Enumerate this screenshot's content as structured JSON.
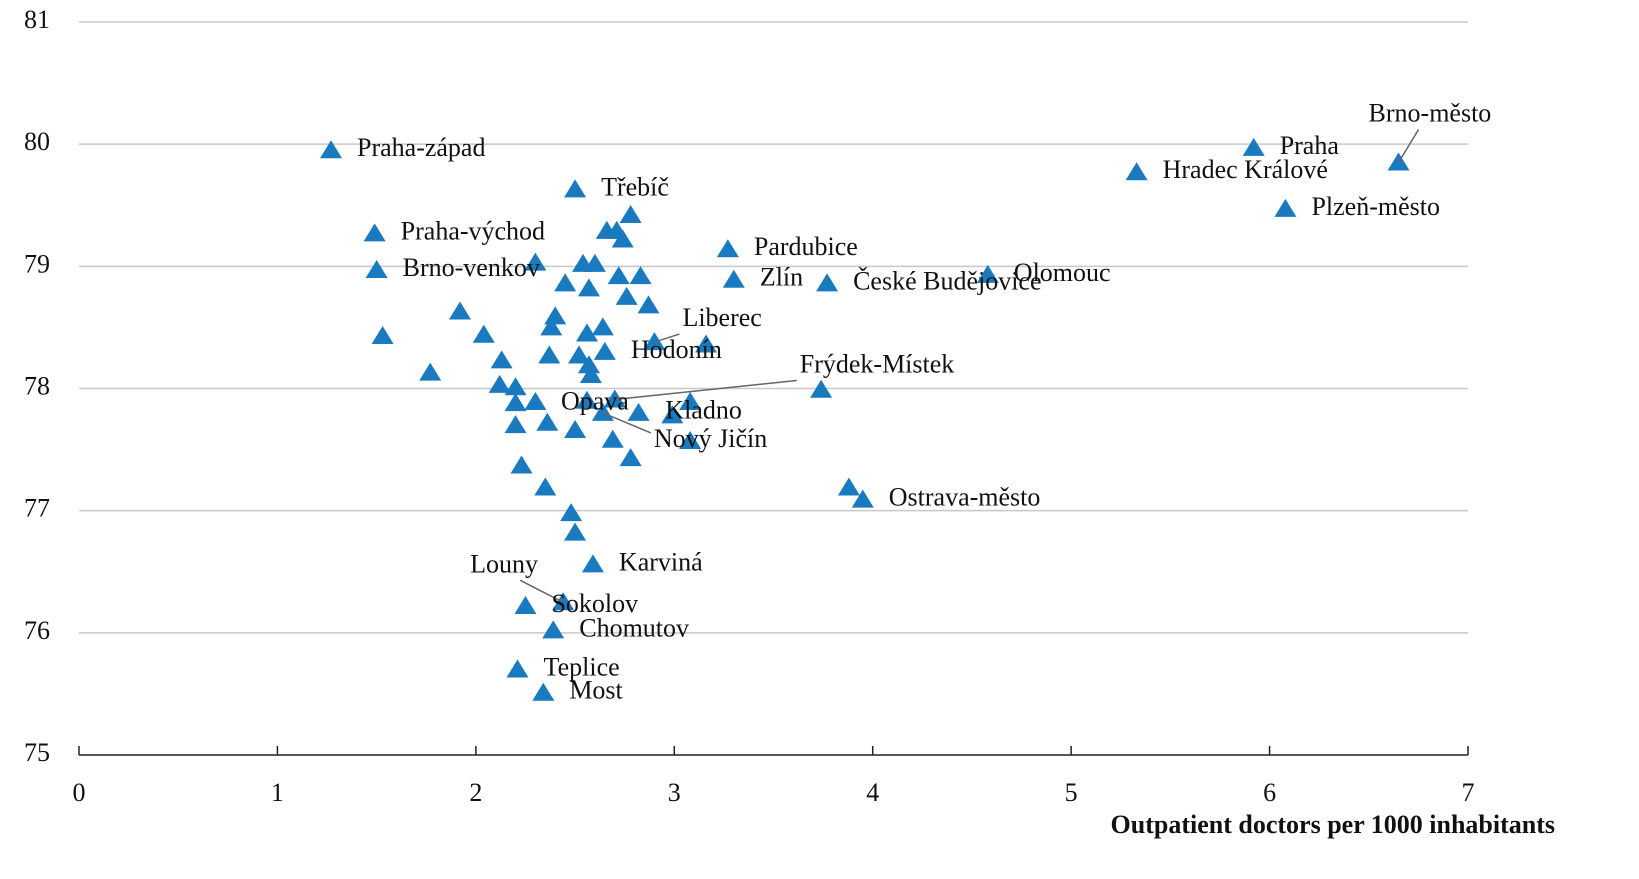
{
  "chart_data": {
    "type": "scatter",
    "x_label": "Outpatient doctors per 1000 inhabitants",
    "color": "#1a7abf",
    "xlim": [
      0,
      7
    ],
    "ylim": [
      75,
      81
    ],
    "xticks": [
      0,
      1,
      2,
      3,
      4,
      5,
      6,
      7
    ],
    "yticks": [
      75,
      76,
      77,
      78,
      79,
      80,
      81
    ],
    "grid": true,
    "labels": [
      "Praha-západ",
      "Třebíč",
      "Praha-východ",
      "Brno-venkov",
      "Pardubice",
      "Zlín",
      "České Budějovice",
      "Olomouc",
      "Liberec",
      "Hodonín",
      "Frýdek-Místek",
      "Opava",
      "Kladno",
      "Nový Jičín",
      "Ostrava-město",
      "Karviná",
      "Louny",
      "Sokolov",
      "Chomutov",
      "Teplice",
      "Most",
      "Praha",
      "Hradec Králové",
      "Brno-město",
      "Plzeň-město",
      null,
      null,
      null,
      null,
      null,
      null,
      null,
      null,
      null,
      null,
      null,
      null,
      null,
      null,
      null,
      null,
      null,
      null,
      null,
      null,
      null,
      null,
      null,
      null,
      null,
      null,
      null,
      null,
      null,
      null,
      null,
      null,
      null,
      null,
      null,
      null,
      null,
      null,
      null,
      null,
      null,
      null,
      null,
      null,
      null
    ],
    "x": [
      1.27,
      2.5,
      1.49,
      1.5,
      3.27,
      3.3,
      3.77,
      4.58,
      2.9,
      2.65,
      2.7,
      2.56,
      2.99,
      2.64,
      3.95,
      2.59,
      2.44,
      2.25,
      2.39,
      2.21,
      2.34,
      5.92,
      5.33,
      6.65,
      6.08,
      2.78,
      2.66,
      2.71,
      2.74,
      2.3,
      2.54,
      2.6,
      2.72,
      2.83,
      2.45,
      2.57,
      2.76,
      2.87,
      1.92,
      2.4,
      2.38,
      2.64,
      2.56,
      2.04,
      1.53,
      3.16,
      2.37,
      2.13,
      2.52,
      2.57,
      1.77,
      2.58,
      2.12,
      2.2,
      3.74,
      2.3,
      2.2,
      3.08,
      2.82,
      2.36,
      2.2,
      2.5,
      2.69,
      3.08,
      2.78,
      2.23,
      2.35,
      3.88,
      2.48,
      2.5
    ],
    "y": [
      79.95,
      79.63,
      79.27,
      78.97,
      79.14,
      78.89,
      78.86,
      78.93,
      78.38,
      78.3,
      77.91,
      77.9,
      77.78,
      77.8,
      77.09,
      76.56,
      76.25,
      76.22,
      76.02,
      75.7,
      75.51,
      79.97,
      79.77,
      79.85,
      79.47,
      79.42,
      79.29,
      79.29,
      79.22,
      79.03,
      79.02,
      79.02,
      78.92,
      78.92,
      78.86,
      78.82,
      78.75,
      78.68,
      78.63,
      78.59,
      78.5,
      78.5,
      78.45,
      78.44,
      78.43,
      78.36,
      78.27,
      78.23,
      78.27,
      78.19,
      78.13,
      78.11,
      78.03,
      78.01,
      77.99,
      77.89,
      77.88,
      77.89,
      77.8,
      77.72,
      77.7,
      77.66,
      77.58,
      77.57,
      77.43,
      77.37,
      77.19,
      77.19,
      76.98,
      76.82
    ]
  }
}
